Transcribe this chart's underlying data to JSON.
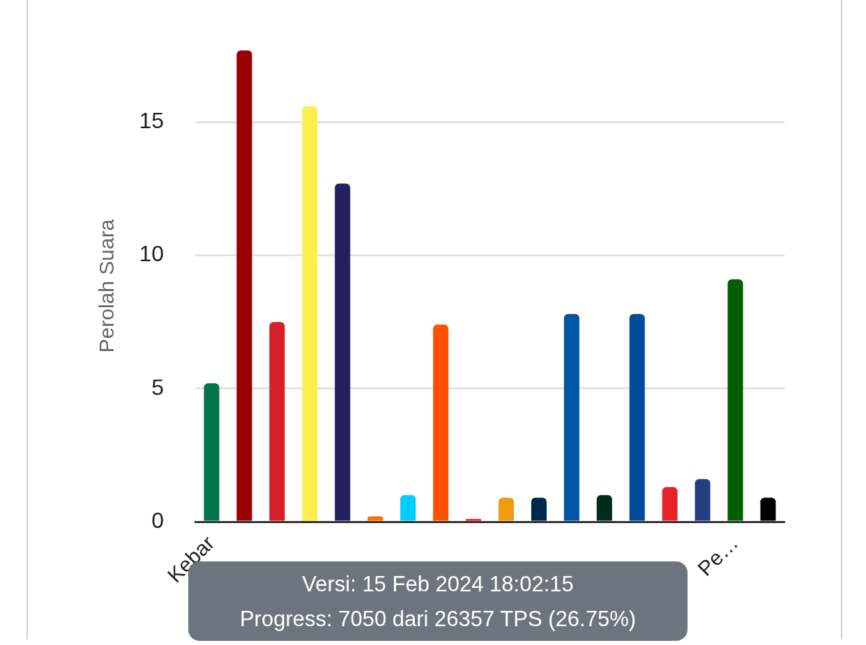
{
  "chart_data": {
    "type": "bar",
    "ylabel": "Perolah Suara",
    "categories": [
      "Kebar",
      null,
      null,
      null,
      null,
      null,
      null,
      null,
      null,
      null,
      null,
      null,
      null,
      null,
      null,
      null,
      "Pe…",
      null
    ],
    "values": [
      5.2,
      17.7,
      7.5,
      15.6,
      12.7,
      0.2,
      1.0,
      7.4,
      0.1,
      0.9,
      0.9,
      7.8,
      1.0,
      7.8,
      1.3,
      1.6,
      9.1,
      0.9
    ],
    "colors": [
      "#007549",
      "#990000",
      "#d62027",
      "#ffee50",
      "#23205f",
      "#ff7100",
      "#00ccff",
      "#ff5100",
      "#ff0000",
      "#ef9c13",
      "#00274d",
      "#0055a4",
      "#002d1a",
      "#004c9a",
      "#e52229",
      "#243e80",
      "#045f00",
      "#000000"
    ],
    "ylim": [
      0,
      17.7
    ],
    "yticks": [
      0,
      5,
      10,
      15
    ],
    "grid": "y",
    "legend": false,
    "annotations": [
      "Versi: 15 Feb 2024 18:02:15",
      "Progress: 7050 dari 26357 TPS (26.75%)"
    ]
  }
}
